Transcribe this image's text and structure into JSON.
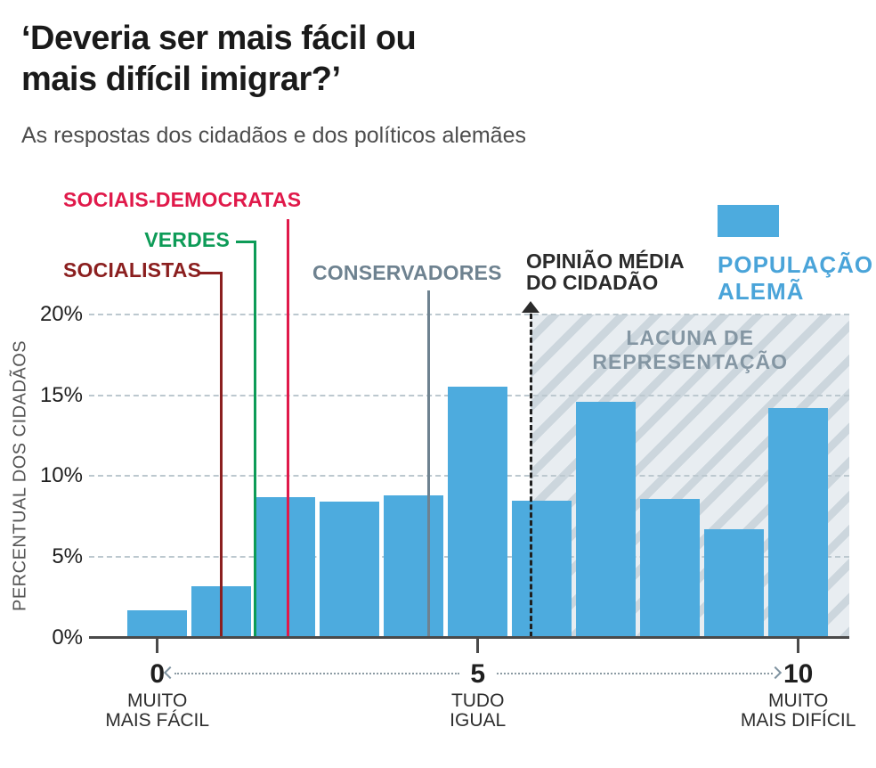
{
  "header": {
    "title_line1": "‘Deveria ser mais fácil ou",
    "title_line2": "mais difícil imigrar?’",
    "subtitle": "As respostas dos cidadãos e dos políticos alemães"
  },
  "party_annotations": [
    {
      "id": "sociais-democratas",
      "label": "SOCIAIS-DEMOCRATAS",
      "color": "#e0194a",
      "x_value": 2.04
    },
    {
      "id": "verdes",
      "label": "VERDES",
      "color": "#0d9b57",
      "x_value": 1.53
    },
    {
      "id": "socialistas",
      "label": "SOCIALISTAS",
      "color": "#8b1f1f",
      "x_value": 1.0
    },
    {
      "id": "conservadores",
      "label": "CONSERVADORES",
      "color": "#6e8290",
      "x_value": 4.24
    }
  ],
  "citizen_mean": {
    "label_line1": "OPINIÃO MÉDIA",
    "label_line2": "DO CIDADÃO",
    "color": "#1f1f1f",
    "x_value": 5.83
  },
  "representation_gap": {
    "label_line1": "LACUNA DE",
    "label_line2": "REPRESENTAÇÃO",
    "text_color": "#8496a3"
  },
  "legend": {
    "swatch_color": "#4dabde",
    "text_color": "#4aa4d9",
    "label_line1": "POPULAÇÃO",
    "label_line2": "ALEMÃ"
  },
  "y_axis": {
    "label": "PERCENTUAL DOS CIDADÃOS",
    "ticks": [
      {
        "pct": 20,
        "label": "20%"
      },
      {
        "pct": 15,
        "label": "15%"
      },
      {
        "pct": 10,
        "label": "10%"
      },
      {
        "pct": 5,
        "label": "5%"
      },
      {
        "pct": 0,
        "label": "0%"
      }
    ]
  },
  "x_axis": {
    "ticks": [
      {
        "value": 0,
        "label": "0",
        "sub1": "MUITO",
        "sub2": "MAIS FÁCIL"
      },
      {
        "value": 5,
        "label": "5",
        "sub1": "TUDO",
        "sub2": "IGUAL"
      },
      {
        "value": 10,
        "label": "10",
        "sub1": "MUITO",
        "sub2": "MAIS DIFÍCIL"
      }
    ]
  },
  "chart_data": {
    "type": "bar",
    "title": "‘Deveria ser mais fácil ou mais difícil imigrar?’",
    "subtitle": "As respostas dos cidadãos e dos políticos alemães",
    "series_name": "POPULAÇÃO ALEMÃ",
    "categories": [
      0,
      1,
      2,
      3,
      4,
      5,
      6,
      7,
      8,
      9,
      10
    ],
    "values": [
      1.7,
      3.2,
      8.7,
      8.4,
      8.8,
      15.5,
      8.5,
      14.6,
      8.6,
      6.7,
      14.2
    ],
    "unit": "%",
    "bar_color": "#4dabde",
    "xlabel_left": "MUITO MAIS FÁCIL",
    "xlabel_center": "TUDO IGUAL",
    "xlabel_right": "MUITO MAIS DIFÍCIL",
    "ylabel": "PERCENTUAL DOS CIDADÃOS",
    "ylim": [
      0,
      20
    ],
    "grid": "dashed horizontal, every 5%",
    "annotations": {
      "socialistas_x": 1.0,
      "verdes_x": 1.53,
      "sociais_democratas_x": 2.04,
      "conservadores_x": 4.24,
      "opiniao_media_cidadao_x": 5.83,
      "lacuna_de_representacao_range_x": [
        5.83,
        10.8
      ]
    }
  }
}
